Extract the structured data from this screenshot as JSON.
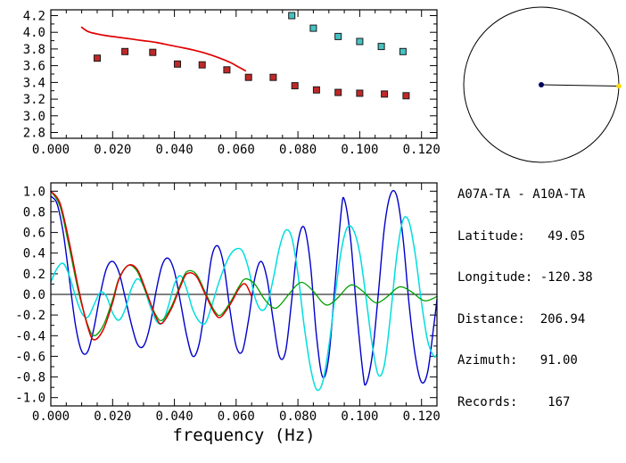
{
  "info_panel": {
    "pair": "A07A-TA - A10A-TA",
    "lines": [
      "Latitude:   49.05",
      "Longitude: -120.38",
      "Distance:  206.94",
      "Azimuth:   91.00",
      "Records:    167"
    ]
  },
  "azimuth_diagram": {
    "azimuth_deg": 91.0,
    "circle_color": "#000000",
    "line_color": "#000000",
    "center_dot_color": "#000060",
    "marker_color": "#ffd700"
  },
  "chart_data": [
    {
      "id": "dispersion",
      "type": "scatter",
      "title": "",
      "xlabel": "",
      "ylabel": "",
      "xlim": [
        0,
        0.125
      ],
      "ylim": [
        2.73,
        4.27
      ],
      "x_ticks": [
        0.0,
        0.02,
        0.04,
        0.06,
        0.08,
        0.1,
        0.12
      ],
      "x_tick_labels": [
        "0.000",
        "0.020",
        "0.040",
        "0.060",
        "0.080",
        "0.100",
        "0.120"
      ],
      "y_ticks": [
        2.8,
        3.0,
        3.2,
        3.4,
        3.6,
        3.8,
        4.0,
        4.2
      ],
      "y_tick_labels": [
        "2.8",
        "3.0",
        "3.2",
        "3.4",
        "3.6",
        "3.8",
        "4.0",
        "4.2"
      ],
      "x_minor": 0.005,
      "y_minor": 0.1,
      "grid": false,
      "series": [
        {
          "name": "red-model-curve",
          "kind": "line",
          "color": "#e00000",
          "width": 1.7,
          "points": [
            [
              0.01,
              4.06
            ],
            [
              0.012,
              4.01
            ],
            [
              0.015,
              3.98
            ],
            [
              0.018,
              3.96
            ],
            [
              0.022,
              3.94
            ],
            [
              0.026,
              3.92
            ],
            [
              0.03,
              3.9
            ],
            [
              0.034,
              3.88
            ],
            [
              0.038,
              3.85
            ],
            [
              0.042,
              3.82
            ],
            [
              0.046,
              3.79
            ],
            [
              0.05,
              3.75
            ],
            [
              0.054,
              3.7
            ],
            [
              0.058,
              3.64
            ],
            [
              0.061,
              3.58
            ],
            [
              0.063,
              3.54
            ]
          ]
        },
        {
          "name": "red-markers",
          "kind": "square",
          "fill": "#c02828",
          "edge": "#1a1a1a",
          "size": 7,
          "points": [
            [
              0.015,
              3.69
            ],
            [
              0.024,
              3.77
            ],
            [
              0.033,
              3.76
            ],
            [
              0.041,
              3.62
            ],
            [
              0.049,
              3.61
            ],
            [
              0.057,
              3.55
            ],
            [
              0.064,
              3.46
            ],
            [
              0.072,
              3.46
            ],
            [
              0.079,
              3.36
            ],
            [
              0.086,
              3.31
            ],
            [
              0.093,
              3.28
            ],
            [
              0.1,
              3.27
            ],
            [
              0.108,
              3.26
            ],
            [
              0.115,
              3.24
            ]
          ]
        },
        {
          "name": "cyan-markers",
          "kind": "square",
          "fill": "#45c2c2",
          "edge": "#1a1a1a",
          "size": 7,
          "points": [
            [
              0.078,
              4.2
            ],
            [
              0.085,
              4.05
            ],
            [
              0.093,
              3.95
            ],
            [
              0.1,
              3.89
            ],
            [
              0.107,
              3.83
            ],
            [
              0.114,
              3.77
            ]
          ]
        }
      ]
    },
    {
      "id": "spectrum",
      "type": "line",
      "title": "",
      "xlabel": "frequency (Hz)",
      "ylabel": "",
      "xlim": [
        0,
        0.125
      ],
      "ylim": [
        -1.08,
        1.08
      ],
      "x_ticks": [
        0.0,
        0.02,
        0.04,
        0.06,
        0.08,
        0.1,
        0.12
      ],
      "x_tick_labels": [
        "0.000",
        "0.020",
        "0.040",
        "0.060",
        "0.080",
        "0.100",
        "0.120"
      ],
      "y_ticks": [
        -1.0,
        -0.8,
        -0.6,
        -0.4,
        -0.2,
        0.0,
        0.2,
        0.4,
        0.6,
        0.8,
        1.0
      ],
      "y_tick_labels": [
        "-1.0",
        "-0.8",
        "-0.6",
        "-0.4",
        "-0.2",
        "0.0",
        "0.2",
        "0.4",
        "0.6",
        "0.8",
        "1.0"
      ],
      "x_minor": 0.005,
      "y_minor": 0.1,
      "zero_line": true,
      "grid": false,
      "series": [
        {
          "name": "blue-trace",
          "kind": "line",
          "color": "#0000cc",
          "width": 1.4,
          "points": [
            [
              0.0,
              0.95
            ],
            [
              0.002,
              0.88
            ],
            [
              0.004,
              0.6
            ],
            [
              0.006,
              0.15
            ],
            [
              0.008,
              -0.3
            ],
            [
              0.01,
              -0.55
            ],
            [
              0.012,
              -0.55
            ],
            [
              0.014,
              -0.32
            ],
            [
              0.016,
              0.0
            ],
            [
              0.018,
              0.25
            ],
            [
              0.02,
              0.32
            ],
            [
              0.022,
              0.22
            ],
            [
              0.024,
              -0.02
            ],
            [
              0.026,
              -0.28
            ],
            [
              0.028,
              -0.48
            ],
            [
              0.03,
              -0.5
            ],
            [
              0.032,
              -0.32
            ],
            [
              0.034,
              0.02
            ],
            [
              0.036,
              0.28
            ],
            [
              0.038,
              0.35
            ],
            [
              0.04,
              0.22
            ],
            [
              0.042,
              -0.08
            ],
            [
              0.044,
              -0.4
            ],
            [
              0.046,
              -0.6
            ],
            [
              0.048,
              -0.48
            ],
            [
              0.05,
              -0.1
            ],
            [
              0.052,
              0.35
            ],
            [
              0.054,
              0.47
            ],
            [
              0.056,
              0.28
            ],
            [
              0.058,
              -0.15
            ],
            [
              0.06,
              -0.5
            ],
            [
              0.062,
              -0.55
            ],
            [
              0.064,
              -0.25
            ],
            [
              0.066,
              0.15
            ],
            [
              0.068,
              0.32
            ],
            [
              0.07,
              0.15
            ],
            [
              0.072,
              -0.25
            ],
            [
              0.074,
              -0.6
            ],
            [
              0.076,
              -0.55
            ],
            [
              0.078,
              -0.05
            ],
            [
              0.08,
              0.5
            ],
            [
              0.082,
              0.65
            ],
            [
              0.084,
              0.3
            ],
            [
              0.086,
              -0.4
            ],
            [
              0.088,
              -0.8
            ],
            [
              0.09,
              -0.6
            ],
            [
              0.092,
              0.1
            ],
            [
              0.094,
              0.8
            ],
            [
              0.095,
              0.92
            ],
            [
              0.097,
              0.55
            ],
            [
              0.099,
              -0.15
            ],
            [
              0.101,
              -0.75
            ],
            [
              0.102,
              -0.87
            ],
            [
              0.104,
              -0.6
            ],
            [
              0.106,
              0.0
            ],
            [
              0.108,
              0.65
            ],
            [
              0.11,
              0.97
            ],
            [
              0.112,
              0.95
            ],
            [
              0.114,
              0.55
            ],
            [
              0.116,
              -0.1
            ],
            [
              0.118,
              -0.6
            ],
            [
              0.12,
              -0.85
            ],
            [
              0.122,
              -0.75
            ],
            [
              0.124,
              -0.3
            ],
            [
              0.125,
              -0.05
            ]
          ]
        },
        {
          "name": "cyan-trace",
          "kind": "line",
          "color": "#00dede",
          "width": 1.5,
          "points": [
            [
              0.0,
              0.12
            ],
            [
              0.002,
              0.25
            ],
            [
              0.004,
              0.3
            ],
            [
              0.006,
              0.18
            ],
            [
              0.008,
              -0.02
            ],
            [
              0.01,
              -0.18
            ],
            [
              0.012,
              -0.22
            ],
            [
              0.014,
              -0.1
            ],
            [
              0.016,
              0.02
            ],
            [
              0.018,
              -0.02
            ],
            [
              0.02,
              -0.18
            ],
            [
              0.022,
              -0.25
            ],
            [
              0.024,
              -0.15
            ],
            [
              0.026,
              0.05
            ],
            [
              0.028,
              0.15
            ],
            [
              0.03,
              0.08
            ],
            [
              0.032,
              -0.1
            ],
            [
              0.034,
              -0.25
            ],
            [
              0.036,
              -0.28
            ],
            [
              0.038,
              -0.12
            ],
            [
              0.04,
              0.1
            ],
            [
              0.042,
              0.18
            ],
            [
              0.044,
              0.05
            ],
            [
              0.046,
              -0.15
            ],
            [
              0.048,
              -0.26
            ],
            [
              0.05,
              -0.28
            ],
            [
              0.052,
              -0.12
            ],
            [
              0.054,
              0.08
            ],
            [
              0.056,
              0.25
            ],
            [
              0.058,
              0.38
            ],
            [
              0.06,
              0.44
            ],
            [
              0.062,
              0.42
            ],
            [
              0.064,
              0.25
            ],
            [
              0.066,
              -0.02
            ],
            [
              0.068,
              -0.15
            ],
            [
              0.07,
              -0.1
            ],
            [
              0.072,
              0.15
            ],
            [
              0.074,
              0.45
            ],
            [
              0.076,
              0.62
            ],
            [
              0.078,
              0.55
            ],
            [
              0.08,
              0.2
            ],
            [
              0.082,
              -0.3
            ],
            [
              0.084,
              -0.7
            ],
            [
              0.086,
              -0.92
            ],
            [
              0.088,
              -0.85
            ],
            [
              0.09,
              -0.5
            ],
            [
              0.092,
              -0.02
            ],
            [
              0.094,
              0.42
            ],
            [
              0.096,
              0.65
            ],
            [
              0.098,
              0.62
            ],
            [
              0.1,
              0.4
            ],
            [
              0.102,
              -0.02
            ],
            [
              0.104,
              -0.48
            ],
            [
              0.106,
              -0.78
            ],
            [
              0.108,
              -0.68
            ],
            [
              0.11,
              -0.2
            ],
            [
              0.112,
              0.38
            ],
            [
              0.114,
              0.72
            ],
            [
              0.116,
              0.7
            ],
            [
              0.118,
              0.38
            ],
            [
              0.12,
              -0.08
            ],
            [
              0.122,
              -0.45
            ],
            [
              0.124,
              -0.6
            ],
            [
              0.125,
              -0.58
            ]
          ]
        },
        {
          "name": "green-trace",
          "kind": "line",
          "color": "#00a000",
          "width": 1.3,
          "points": [
            [
              0.0,
              1.0
            ],
            [
              0.003,
              0.85
            ],
            [
              0.006,
              0.45
            ],
            [
              0.009,
              0.02
            ],
            [
              0.012,
              -0.3
            ],
            [
              0.014,
              -0.4
            ],
            [
              0.017,
              -0.3
            ],
            [
              0.02,
              -0.05
            ],
            [
              0.022,
              0.15
            ],
            [
              0.025,
              0.28
            ],
            [
              0.028,
              0.22
            ],
            [
              0.031,
              0.0
            ],
            [
              0.034,
              -0.2
            ],
            [
              0.036,
              -0.25
            ],
            [
              0.039,
              -0.12
            ],
            [
              0.042,
              0.1
            ],
            [
              0.044,
              0.22
            ],
            [
              0.047,
              0.2
            ],
            [
              0.05,
              0.02
            ],
            [
              0.053,
              -0.16
            ],
            [
              0.055,
              -0.2
            ],
            [
              0.058,
              -0.08
            ],
            [
              0.061,
              0.08
            ],
            [
              0.063,
              0.15
            ],
            [
              0.066,
              0.1
            ],
            [
              0.069,
              -0.04
            ],
            [
              0.072,
              -0.13
            ],
            [
              0.074,
              -0.11
            ],
            [
              0.077,
              0.0
            ],
            [
              0.08,
              0.1
            ],
            [
              0.082,
              0.11
            ],
            [
              0.085,
              0.03
            ],
            [
              0.088,
              -0.08
            ],
            [
              0.09,
              -0.1
            ],
            [
              0.093,
              -0.03
            ],
            [
              0.096,
              0.07
            ],
            [
              0.098,
              0.09
            ],
            [
              0.101,
              0.03
            ],
            [
              0.104,
              -0.06
            ],
            [
              0.106,
              -0.08
            ],
            [
              0.109,
              -0.02
            ],
            [
              0.112,
              0.06
            ],
            [
              0.114,
              0.07
            ],
            [
              0.117,
              0.02
            ],
            [
              0.12,
              -0.05
            ],
            [
              0.122,
              -0.06
            ],
            [
              0.125,
              -0.02
            ]
          ]
        },
        {
          "name": "red-trace",
          "kind": "line",
          "color": "#e00000",
          "width": 1.5,
          "points": [
            [
              0.0,
              1.0
            ],
            [
              0.003,
              0.88
            ],
            [
              0.006,
              0.5
            ],
            [
              0.009,
              0.05
            ],
            [
              0.012,
              -0.32
            ],
            [
              0.014,
              -0.44
            ],
            [
              0.017,
              -0.34
            ],
            [
              0.02,
              -0.08
            ],
            [
              0.022,
              0.14
            ],
            [
              0.025,
              0.28
            ],
            [
              0.028,
              0.24
            ],
            [
              0.031,
              0.02
            ],
            [
              0.034,
              -0.22
            ],
            [
              0.036,
              -0.28
            ],
            [
              0.039,
              -0.14
            ],
            [
              0.042,
              0.08
            ],
            [
              0.044,
              0.2
            ],
            [
              0.047,
              0.18
            ],
            [
              0.05,
              0.0
            ],
            [
              0.053,
              -0.18
            ],
            [
              0.055,
              -0.22
            ],
            [
              0.058,
              -0.1
            ],
            [
              0.061,
              0.06
            ],
            [
              0.063,
              0.1
            ],
            [
              0.065,
              -0.02
            ]
          ]
        }
      ]
    }
  ]
}
